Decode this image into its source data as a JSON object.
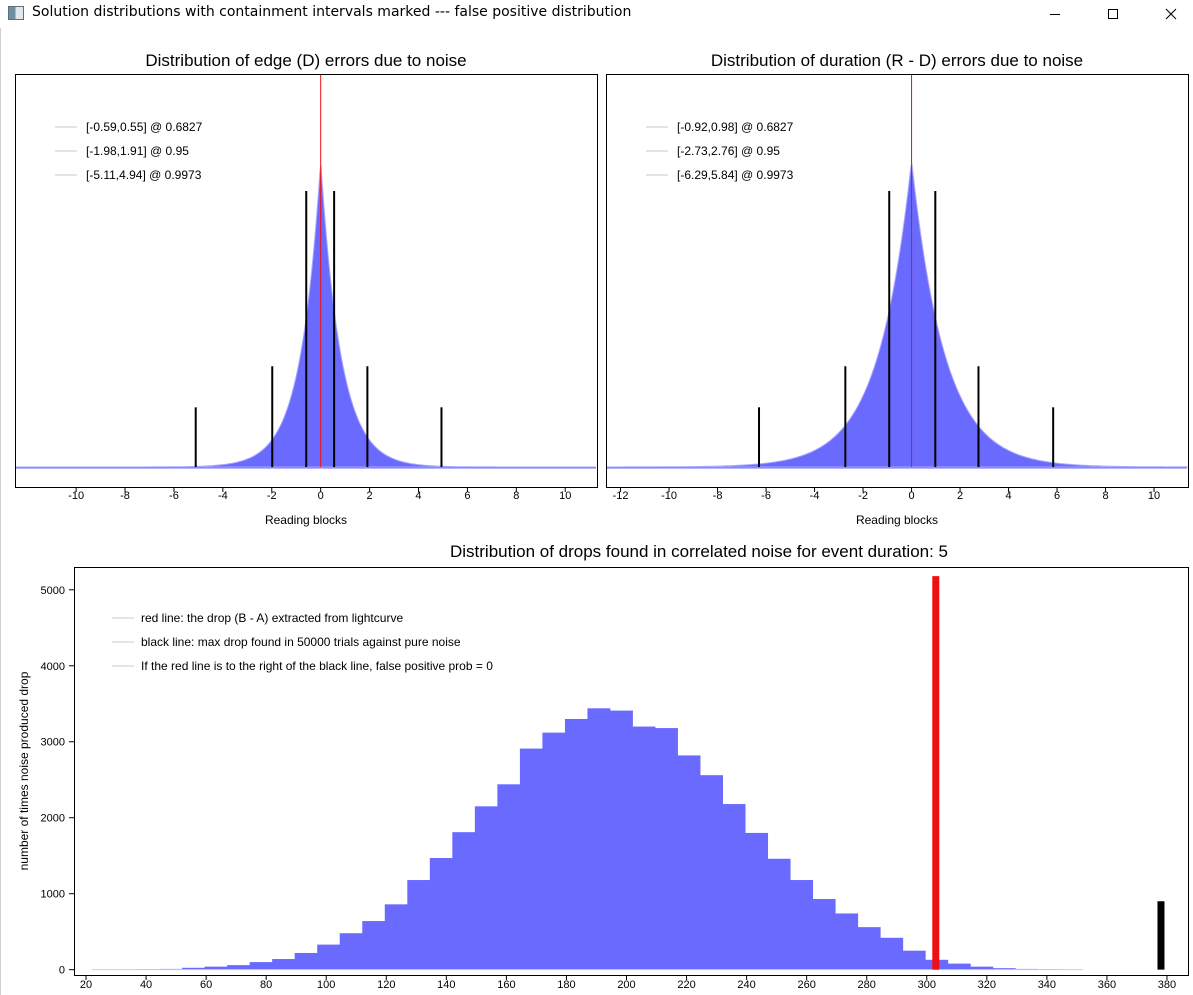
{
  "window": {
    "title": "Solution distributions with containment intervals marked --- false positive distribution",
    "icon": "app-window-icon",
    "controls": [
      "minimize-icon",
      "maximize-icon",
      "close-icon"
    ]
  },
  "colors": {
    "histogram": "#6a6aff",
    "red_line": "#ee1111",
    "black_line": "#000000",
    "axis": "#000000"
  },
  "chart_data": [
    {
      "type": "bar",
      "title": "Distribution of edge (D) errors due to noise",
      "xlabel": "Reading blocks",
      "ylabel": "",
      "xlim": [
        -12.5,
        11.3
      ],
      "xticks": [
        -10,
        -8,
        -6,
        -4,
        -2,
        0,
        2,
        4,
        6,
        8,
        10
      ],
      "y_ticks_shown": false,
      "distribution": {
        "shape": "laplace-like",
        "center": 0,
        "peak_relative_height": 1.0
      },
      "reference_line": {
        "x": 0,
        "color": "red"
      },
      "intervals": [
        {
          "label": "[-0.59,0.55] @ 0.6827",
          "low": -0.59,
          "high": 0.55,
          "relative_height": 0.74
        },
        {
          "label": "[-1.98,1.91] @ 0.95",
          "low": -1.98,
          "high": 1.91,
          "relative_height": 0.27
        },
        {
          "label": "[-5.11,4.94] @ 0.9973",
          "low": -5.11,
          "high": 4.94,
          "relative_height": 0.16
        }
      ],
      "legend_position": "top-left"
    },
    {
      "type": "bar",
      "title": "Distribution of duration (R - D) errors due to noise",
      "xlabel": "Reading blocks",
      "ylabel": "",
      "xlim": [
        -12.6,
        11.4
      ],
      "xticks": [
        -12,
        -10,
        -8,
        -6,
        -4,
        -2,
        0,
        2,
        4,
        6,
        8,
        10
      ],
      "y_ticks_shown": false,
      "distribution": {
        "shape": "laplace-like",
        "center": 0,
        "peak_relative_height": 1.0
      },
      "reference_line": {
        "x": 0,
        "color": "red"
      },
      "intervals": [
        {
          "label": "[-0.92,0.98] @ 0.6827",
          "low": -0.92,
          "high": 0.98,
          "relative_height": 0.74
        },
        {
          "label": "[-2.73,2.76] @ 0.95",
          "low": -2.73,
          "high": 2.76,
          "relative_height": 0.27
        },
        {
          "label": "[-6.29,5.84] @ 0.9973",
          "low": -6.29,
          "high": 5.84,
          "relative_height": 0.16
        }
      ],
      "legend_position": "top-left"
    },
    {
      "type": "bar",
      "title": "Distribution of drops found in correlated noise for event duration: 5",
      "xlabel": "",
      "ylabel": "number of times noise produced drop",
      "xlim": [
        16,
        387
      ],
      "ylim": [
        -70,
        5300
      ],
      "xticks": [
        20,
        40,
        60,
        80,
        100,
        120,
        140,
        160,
        180,
        200,
        220,
        240,
        260,
        280,
        300,
        320,
        340,
        360,
        380
      ],
      "yticks": [
        0,
        1000,
        2000,
        3000,
        4000,
        5000
      ],
      "bin_width": 7.5,
      "bin_starts": [
        22,
        29.5,
        37,
        44.5,
        52,
        59.5,
        67,
        74.5,
        82,
        89.5,
        97,
        104.5,
        112,
        119.5,
        127,
        134.5,
        142,
        149.5,
        157,
        164.5,
        172,
        179.5,
        187,
        194.5,
        202,
        209.5,
        217,
        224.5,
        232,
        239.5,
        247,
        254.5,
        262,
        269.5,
        277,
        284.5,
        292,
        299.5,
        307,
        314.5,
        322,
        329.5,
        337,
        344.5
      ],
      "values": [
        0,
        0,
        5,
        10,
        25,
        40,
        60,
        100,
        140,
        220,
        330,
        480,
        640,
        860,
        1180,
        1470,
        1810,
        2150,
        2440,
        2910,
        3120,
        3300,
        3440,
        3410,
        3200,
        3180,
        2820,
        2560,
        2180,
        1800,
        1460,
        1180,
        930,
        740,
        560,
        420,
        250,
        130,
        80,
        40,
        20,
        10,
        5,
        0
      ],
      "red_line": {
        "x": 303,
        "height": 5180,
        "label": "red line: the drop (B - A) extracted from lightcurve"
      },
      "black_line": {
        "x": 378,
        "height": 900,
        "label": "black line: max drop found in 50000 trials against pure noise"
      },
      "note": "If the red line is to the right of the black line, false positive prob = 0",
      "legend_position": "top-left"
    }
  ]
}
